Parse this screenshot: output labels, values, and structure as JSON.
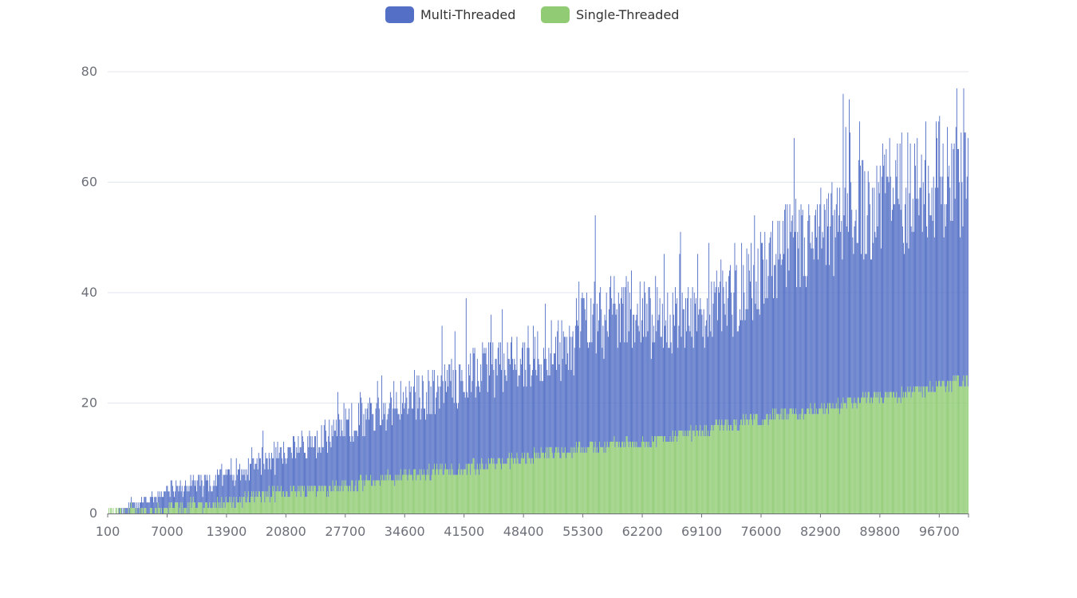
{
  "chart_data": {
    "type": "bar",
    "stacked": true,
    "title": "",
    "xlabel": "",
    "ylabel": "",
    "x_range": [
      100,
      100000
    ],
    "x_step": 100,
    "ylim": [
      0,
      80
    ],
    "yticks": [
      0,
      20,
      40,
      60,
      80
    ],
    "xtick_labels": [
      "100",
      "7000",
      "13900",
      "20800",
      "27700",
      "34600",
      "41500",
      "48400",
      "55300",
      "62200",
      "69100",
      "76000",
      "82900",
      "89800",
      "96700"
    ],
    "grid": "horizontal",
    "legend_position": "top-center",
    "series": [
      {
        "name": "Multi-Threaded",
        "color": "#5470c6",
        "stack_order": "top",
        "approx_profile": [
          {
            "x": 100,
            "y": 0
          },
          {
            "x": 3000,
            "y": 1
          },
          {
            "x": 7000,
            "y": 3
          },
          {
            "x": 13900,
            "y": 5
          },
          {
            "x": 20800,
            "y": 7
          },
          {
            "x": 27700,
            "y": 11
          },
          {
            "x": 34600,
            "y": 13
          },
          {
            "x": 41500,
            "y": 17
          },
          {
            "x": 48400,
            "y": 18
          },
          {
            "x": 54000,
            "y": 18
          },
          {
            "x": 55300,
            "y": 25
          },
          {
            "x": 62200,
            "y": 23
          },
          {
            "x": 69100,
            "y": 20
          },
          {
            "x": 76000,
            "y": 27
          },
          {
            "x": 82900,
            "y": 31
          },
          {
            "x": 89800,
            "y": 36
          },
          {
            "x": 96700,
            "y": 37
          },
          {
            "x": 100000,
            "y": 38
          }
        ]
      },
      {
        "name": "Single-Threaded",
        "color": "#91cc75",
        "stack_order": "bottom",
        "approx_profile": [
          {
            "x": 100,
            "y": 0
          },
          {
            "x": 7000,
            "y": 1
          },
          {
            "x": 13900,
            "y": 2
          },
          {
            "x": 20800,
            "y": 4
          },
          {
            "x": 27700,
            "y": 5
          },
          {
            "x": 34600,
            "y": 7
          },
          {
            "x": 41500,
            "y": 8
          },
          {
            "x": 48400,
            "y": 10
          },
          {
            "x": 55300,
            "y": 12
          },
          {
            "x": 62200,
            "y": 13
          },
          {
            "x": 69100,
            "y": 15
          },
          {
            "x": 76000,
            "y": 17
          },
          {
            "x": 82900,
            "y": 19
          },
          {
            "x": 89800,
            "y": 21
          },
          {
            "x": 96700,
            "y": 23
          },
          {
            "x": 100000,
            "y": 24
          }
        ]
      }
    ]
  }
}
